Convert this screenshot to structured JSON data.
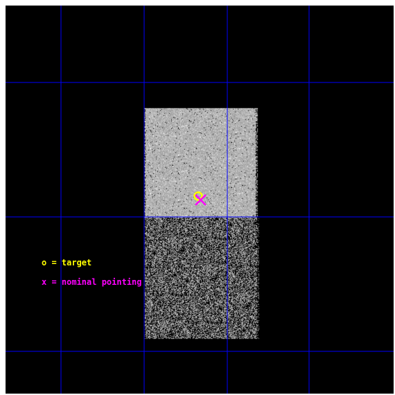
{
  "legend": {
    "target_label": "o = target",
    "nominal_label": "x = nominal pointing"
  },
  "colors": {
    "background": "#000000",
    "grid_line": "#0000ff",
    "target_marker": "#ffff00",
    "nominal_marker": "#ff00ff",
    "upper_field_gray": "#b4b4b4",
    "lower_field_gray": "#9a9a9a"
  },
  "markers": {
    "target_symbol": "o",
    "nominal_symbol": "x"
  },
  "icons": {
    "target": "target-circle-icon",
    "nominal": "nominal-x-icon"
  }
}
